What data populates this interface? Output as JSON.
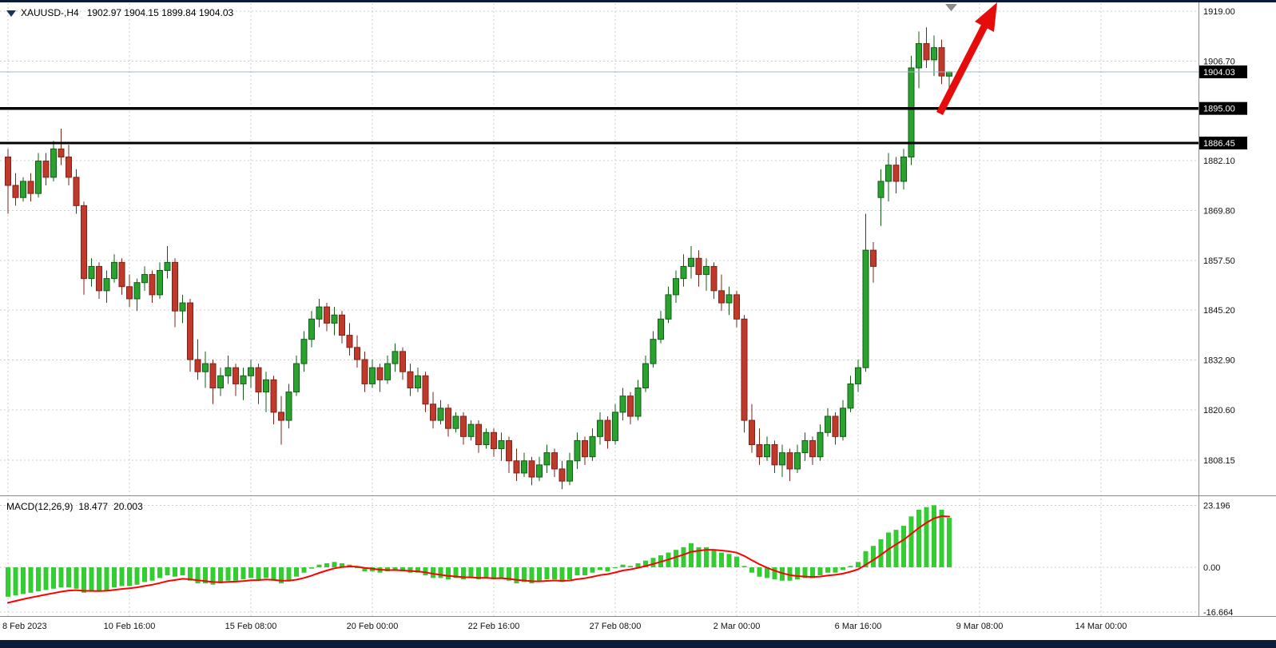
{
  "header": {
    "symbol_period": "XAUUSD-,H4",
    "ohlc": "1902.97 1904.15 1899.84 1904.03"
  },
  "macd_panel": {
    "label": "MACD(12,26,9)",
    "main_value": "18.477",
    "signal_value": "20.003"
  },
  "colors": {
    "bull_fill": "#2aa22e",
    "bull_stroke": "#135c18",
    "bear_fill": "#c0392b",
    "bear_stroke": "#7e2318",
    "hist_green": "#33cc33",
    "signal_red": "#ff0000",
    "hline_black": "#000000",
    "current_price_line": "#9db9cc",
    "arrow_red": "#e60c0c",
    "grid": "#cccccc",
    "separator": "#8a8a8a",
    "tag_bg": "#000000",
    "tag_text": "#ffffff",
    "window_edge": "#0a1c38",
    "shift_marker": "#8c8c8c"
  },
  "chart_data": [
    {
      "type": "candlestick",
      "symbol": "XAUUSD-",
      "timeframe": "H4",
      "last_ohlc": {
        "open": 1902.97,
        "high": 1904.15,
        "low": 1899.84,
        "close": 1904.03
      },
      "current_price": 1904.03,
      "hlines": [
        1895.0,
        1886.45
      ],
      "ylim": [
        1799.0,
        1921.0
      ],
      "price_ticks": [
        {
          "label": "1919.00",
          "price": 1919.0,
          "type": "grid"
        },
        {
          "label": "1906.70",
          "price": 1906.7,
          "type": "grid"
        },
        {
          "label": "1904.03",
          "price": 1904.03,
          "type": "current"
        },
        {
          "label": "1895.00",
          "price": 1895.0,
          "type": "hline"
        },
        {
          "label": "1886.45",
          "price": 1886.45,
          "type": "hline"
        },
        {
          "label": "1882.10",
          "price": 1882.1,
          "type": "grid"
        },
        {
          "label": "1869.80",
          "price": 1869.8,
          "type": "grid"
        },
        {
          "label": "1857.50",
          "price": 1857.5,
          "type": "grid"
        },
        {
          "label": "1845.20",
          "price": 1845.2,
          "type": "grid"
        },
        {
          "label": "1832.90",
          "price": 1832.9,
          "type": "grid"
        },
        {
          "label": "1820.60",
          "price": 1820.6,
          "type": "grid"
        },
        {
          "label": "1808.15",
          "price": 1808.15,
          "type": "grid"
        }
      ],
      "x_labels": [
        {
          "label": "8 Feb 2023",
          "bar": 0
        },
        {
          "label": "10 Feb 16:00",
          "bar": 16
        },
        {
          "label": "15 Feb 08:00",
          "bar": 32
        },
        {
          "label": "20 Feb 00:00",
          "bar": 48
        },
        {
          "label": "22 Feb 16:00",
          "bar": 64
        },
        {
          "label": "27 Feb 08:00",
          "bar": 80
        },
        {
          "label": "2 Mar 00:00",
          "bar": 96
        },
        {
          "label": "6 Mar 16:00",
          "bar": 112
        },
        {
          "label": "9 Mar 08:00",
          "bar": 128
        },
        {
          "label": "14 Mar 00:00",
          "bar": 144
        }
      ],
      "candles": [
        [
          1883,
          1885,
          1869,
          1876
        ],
        [
          1876,
          1879,
          1871,
          1873
        ],
        [
          1873,
          1878,
          1872,
          1877
        ],
        [
          1877,
          1879,
          1872,
          1874
        ],
        [
          1874,
          1884,
          1873,
          1882
        ],
        [
          1882,
          1884,
          1876,
          1878
        ],
        [
          1878,
          1887,
          1877,
          1885
        ],
        [
          1885,
          1890,
          1881,
          1883
        ],
        [
          1883,
          1886,
          1876,
          1878
        ],
        [
          1878,
          1880,
          1869,
          1871
        ],
        [
          1871,
          1872,
          1849,
          1853
        ],
        [
          1853,
          1858,
          1851,
          1856
        ],
        [
          1856,
          1857,
          1848,
          1850
        ],
        [
          1850,
          1855,
          1847,
          1853
        ],
        [
          1853,
          1859,
          1852,
          1857
        ],
        [
          1857,
          1858,
          1849,
          1851
        ],
        [
          1851,
          1854,
          1846,
          1848
        ],
        [
          1848,
          1853,
          1845,
          1852
        ],
        [
          1852,
          1856,
          1850,
          1854
        ],
        [
          1854,
          1855,
          1847,
          1849
        ],
        [
          1849,
          1857,
          1848,
          1855
        ],
        [
          1855,
          1861,
          1853,
          1857
        ],
        [
          1857,
          1858,
          1841,
          1845
        ],
        [
          1845,
          1849,
          1842,
          1847
        ],
        [
          1847,
          1848,
          1830,
          1833
        ],
        [
          1833,
          1838,
          1828,
          1830
        ],
        [
          1830,
          1835,
          1826,
          1832
        ],
        [
          1832,
          1833,
          1822,
          1826
        ],
        [
          1826,
          1831,
          1824,
          1829
        ],
        [
          1829,
          1834,
          1827,
          1831
        ],
        [
          1831,
          1832,
          1824,
          1827
        ],
        [
          1827,
          1831,
          1823,
          1829
        ],
        [
          1829,
          1833,
          1826,
          1831
        ],
        [
          1831,
          1832,
          1822,
          1825
        ],
        [
          1825,
          1830,
          1820,
          1828
        ],
        [
          1828,
          1829,
          1817,
          1820
        ],
        [
          1820,
          1824,
          1812,
          1818
        ],
        [
          1818,
          1827,
          1816,
          1825
        ],
        [
          1825,
          1834,
          1824,
          1832
        ],
        [
          1832,
          1840,
          1830,
          1838
        ],
        [
          1838,
          1845,
          1836,
          1843
        ],
        [
          1843,
          1848,
          1841,
          1846
        ],
        [
          1846,
          1847,
          1840,
          1842
        ],
        [
          1842,
          1846,
          1839,
          1844
        ],
        [
          1844,
          1845,
          1837,
          1839
        ],
        [
          1839,
          1842,
          1834,
          1836
        ],
        [
          1836,
          1839,
          1831,
          1833
        ],
        [
          1833,
          1835,
          1825,
          1827
        ],
        [
          1827,
          1833,
          1826,
          1831
        ],
        [
          1831,
          1832,
          1825,
          1828
        ],
        [
          1828,
          1834,
          1827,
          1832
        ],
        [
          1832,
          1837,
          1830,
          1835
        ],
        [
          1835,
          1836,
          1828,
          1830
        ],
        [
          1830,
          1832,
          1824,
          1826
        ],
        [
          1826,
          1831,
          1825,
          1829
        ],
        [
          1829,
          1830,
          1820,
          1822
        ],
        [
          1822,
          1825,
          1816,
          1818
        ],
        [
          1818,
          1823,
          1817,
          1821
        ],
        [
          1821,
          1822,
          1814,
          1816
        ],
        [
          1816,
          1820,
          1815,
          1819
        ],
        [
          1819,
          1820,
          1812,
          1814
        ],
        [
          1814,
          1818,
          1813,
          1817
        ],
        [
          1817,
          1818,
          1810,
          1812
        ],
        [
          1812,
          1816,
          1811,
          1815
        ],
        [
          1815,
          1816,
          1809,
          1811
        ],
        [
          1811,
          1815,
          1808,
          1813
        ],
        [
          1813,
          1814,
          1805,
          1808
        ],
        [
          1808,
          1811,
          1803,
          1805
        ],
        [
          1805,
          1810,
          1804,
          1808
        ],
        [
          1808,
          1809,
          1802,
          1804
        ],
        [
          1804,
          1809,
          1803,
          1807
        ],
        [
          1807,
          1812,
          1805,
          1810
        ],
        [
          1810,
          1811,
          1804,
          1806
        ],
        [
          1806,
          1808,
          1801,
          1803
        ],
        [
          1803,
          1810,
          1802,
          1808
        ],
        [
          1808,
          1815,
          1806,
          1813
        ],
        [
          1813,
          1814,
          1807,
          1809
        ],
        [
          1809,
          1816,
          1808,
          1814
        ],
        [
          1814,
          1820,
          1812,
          1818
        ],
        [
          1818,
          1819,
          1811,
          1813
        ],
        [
          1813,
          1822,
          1812,
          1820
        ],
        [
          1820,
          1826,
          1818,
          1824
        ],
        [
          1824,
          1825,
          1817,
          1819
        ],
        [
          1819,
          1828,
          1818,
          1826
        ],
        [
          1826,
          1834,
          1825,
          1832
        ],
        [
          1832,
          1840,
          1831,
          1838
        ],
        [
          1838,
          1845,
          1837,
          1843
        ],
        [
          1843,
          1851,
          1842,
          1849
        ],
        [
          1849,
          1855,
          1847,
          1853
        ],
        [
          1853,
          1859,
          1851,
          1856
        ],
        [
          1856,
          1861,
          1853,
          1858
        ],
        [
          1858,
          1860,
          1851,
          1854
        ],
        [
          1854,
          1858,
          1850,
          1856
        ],
        [
          1856,
          1857,
          1848,
          1850
        ],
        [
          1850,
          1854,
          1845,
          1847
        ],
        [
          1847,
          1851,
          1844,
          1849
        ],
        [
          1849,
          1850,
          1841,
          1843
        ],
        [
          1843,
          1844,
          1815,
          1818
        ],
        [
          1818,
          1822,
          1810,
          1812
        ],
        [
          1812,
          1816,
          1807,
          1809
        ],
        [
          1809,
          1814,
          1808,
          1812
        ],
        [
          1812,
          1813,
          1805,
          1807
        ],
        [
          1807,
          1812,
          1804,
          1810
        ],
        [
          1810,
          1811,
          1803,
          1806
        ],
        [
          1806,
          1812,
          1805,
          1810
        ],
        [
          1810,
          1815,
          1808,
          1813
        ],
        [
          1813,
          1814,
          1807,
          1809
        ],
        [
          1809,
          1817,
          1808,
          1815
        ],
        [
          1815,
          1821,
          1814,
          1819
        ],
        [
          1819,
          1820,
          1812,
          1814
        ],
        [
          1814,
          1823,
          1813,
          1821
        ],
        [
          1821,
          1829,
          1820,
          1827
        ],
        [
          1827,
          1833,
          1825,
          1831
        ],
        [
          1831,
          1869,
          1830,
          1860
        ],
        [
          1860,
          1862,
          1852,
          1856
        ],
        [
          1873,
          1880,
          1866,
          1877
        ],
        [
          1877,
          1884,
          1872,
          1881
        ],
        [
          1881,
          1883,
          1874,
          1877
        ],
        [
          1877,
          1885,
          1875,
          1883
        ],
        [
          1883,
          1908,
          1881,
          1905
        ],
        [
          1905,
          1914,
          1900,
          1911
        ],
        [
          1911,
          1915,
          1905,
          1907
        ],
        [
          1907,
          1913,
          1903,
          1910
        ],
        [
          1910,
          1912,
          1901,
          1903
        ],
        [
          1902.97,
          1904.15,
          1899.84,
          1904.03
        ]
      ]
    },
    {
      "type": "macd",
      "label": "MACD(12,26,9)",
      "params": [
        12,
        26,
        9
      ],
      "main_value": 18.477,
      "signal_value": 20.003,
      "y_ticks": [
        {
          "label": "23.196",
          "value": 23.196
        },
        {
          "label": "0.00",
          "value": 0
        },
        {
          "label": "-16.664",
          "value": -16.664
        }
      ],
      "signal_seed": -14,
      "signal_alpha": 0.25,
      "histogram": [
        -11,
        -10.5,
        -10,
        -9.5,
        -9,
        -8.5,
        -8,
        -7.5,
        -7.5,
        -8,
        -9.5,
        -9,
        -9,
        -8.5,
        -7.5,
        -7,
        -7,
        -6.5,
        -5.5,
        -5,
        -4,
        -3,
        -3.5,
        -3,
        -5,
        -6,
        -6,
        -6.5,
        -6,
        -5,
        -5,
        -4.5,
        -4,
        -4.5,
        -4,
        -5,
        -6,
        -5,
        -3.5,
        -2,
        -0.5,
        1,
        1.5,
        2,
        1.5,
        1,
        0,
        -1.5,
        -1.5,
        -2,
        -1.5,
        -1,
        -1.5,
        -2,
        -2,
        -3,
        -4,
        -4,
        -4.5,
        -4,
        -4.5,
        -4,
        -4.5,
        -4,
        -4.5,
        -4,
        -5,
        -6,
        -5.5,
        -6,
        -5.5,
        -4.5,
        -4.5,
        -5.5,
        -4.5,
        -3,
        -3,
        -2,
        -1,
        -1.5,
        0,
        1,
        0.5,
        1.5,
        2.5,
        3.5,
        4.5,
        5.5,
        6.5,
        7.5,
        9,
        7.5,
        7.5,
        6.5,
        5.5,
        5,
        4,
        0.5,
        -2,
        -3.5,
        -4,
        -4.5,
        -5,
        -5,
        -4.5,
        -4,
        -4,
        -3,
        -2,
        -2,
        -1,
        0.5,
        2,
        6,
        8,
        10.5,
        13,
        14,
        15.5,
        19,
        21.5,
        22.5,
        23.196,
        21.5,
        18.477
      ]
    }
  ]
}
